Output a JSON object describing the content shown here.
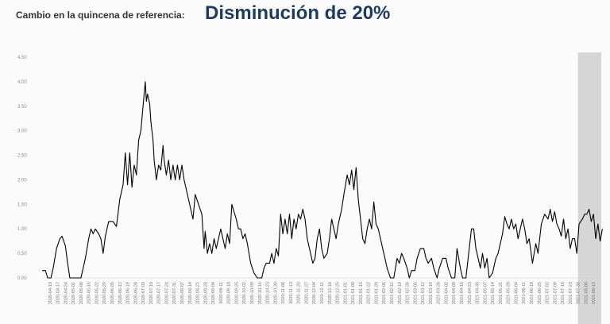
{
  "header": {
    "lead": "Cambio en la quincena de referencia:",
    "headline": "Disminución de 20%"
  },
  "colors": {
    "line": "#000000",
    "headline": "#1e3a5f",
    "highlight": "#d6d6d6",
    "grid": "#e6e6e6"
  },
  "chart_data": {
    "type": "line",
    "title": "",
    "xlabel": "",
    "ylabel": "",
    "ylim": [
      0,
      4.5
    ],
    "yticks": [
      "0.00",
      "0.50",
      "1.00",
      "1.50",
      "2.00",
      "2.50",
      "3.00",
      "3.50",
      "4.00",
      "4.50"
    ],
    "x_start": "2020-04-03",
    "x_end": "2021-08-20",
    "xticks": [
      "2020-04-10",
      "2020-04-17",
      "2020-04-24",
      "2020-05-01",
      "2020-05-08",
      "2020-05-15",
      "2020-05-22",
      "2020-05-29",
      "2020-06-05",
      "2020-06-12",
      "2020-06-19",
      "2020-06-26",
      "2020-07-03",
      "2020-07-10",
      "2020-07-17",
      "2020-07-24",
      "2020-07-31",
      "2020-08-07",
      "2020-08-14",
      "2020-08-21",
      "2020-08-28",
      "2020-09-04",
      "2020-09-11",
      "2020-09-18",
      "2020-09-25",
      "2020-10-02",
      "2020-10-09",
      "2020-10-16",
      "2020-10-23",
      "2020-10-30",
      "2020-11-06",
      "2020-11-13",
      "2020-11-20",
      "2020-11-27",
      "2020-12-04",
      "2020-12-11",
      "2020-12-18",
      "2020-12-25",
      "2021-01-01",
      "2021-01-08",
      "2021-01-15",
      "2021-01-22",
      "2021-01-29",
      "2021-02-05",
      "2021-02-12",
      "2021-02-19",
      "2021-02-26",
      "2021-03-05",
      "2021-03-12",
      "2021-03-19",
      "2021-03-26",
      "2021-04-02",
      "2021-04-09",
      "2021-04-16",
      "2021-04-23",
      "2021-04-30",
      "2021-05-07",
      "2021-05-14",
      "2021-05-21",
      "2021-05-28",
      "2021-06-04",
      "2021-06-11",
      "2021-06-18",
      "2021-06-25",
      "2021-07-02",
      "2021-07-09",
      "2021-07-16",
      "2021-07-23",
      "2021-07-30",
      "2021-08-06",
      "2021-08-13"
    ],
    "highlight": {
      "from": "2021-07-30",
      "to": "2021-08-20"
    },
    "grid": false,
    "legend": "none",
    "series": [
      {
        "points": [
          [
            "2020-04-03",
            0.15
          ],
          [
            "2020-04-06",
            0.15
          ],
          [
            "2020-04-08",
            0.0
          ],
          [
            "2020-04-11",
            0.0
          ],
          [
            "2020-04-13",
            0.2
          ],
          [
            "2020-04-16",
            0.6
          ],
          [
            "2020-04-19",
            0.8
          ],
          [
            "2020-04-21",
            0.85
          ],
          [
            "2020-04-24",
            0.65
          ],
          [
            "2020-04-26",
            0.3
          ],
          [
            "2020-04-28",
            0.0
          ],
          [
            "2020-05-08",
            0.0
          ],
          [
            "2020-05-12",
            0.4
          ],
          [
            "2020-05-15",
            0.8
          ],
          [
            "2020-05-17",
            1.0
          ],
          [
            "2020-05-19",
            0.9
          ],
          [
            "2020-05-21",
            1.0
          ],
          [
            "2020-05-24",
            0.9
          ],
          [
            "2020-05-26",
            0.8
          ],
          [
            "2020-05-28",
            0.5
          ],
          [
            "2020-05-30",
            0.85
          ],
          [
            "2020-06-02",
            1.15
          ],
          [
            "2020-06-06",
            1.15
          ],
          [
            "2020-06-09",
            1.05
          ],
          [
            "2020-06-12",
            1.6
          ],
          [
            "2020-06-15",
            1.9
          ],
          [
            "2020-06-17",
            2.55
          ],
          [
            "2020-06-19",
            1.9
          ],
          [
            "2020-06-21",
            2.55
          ],
          [
            "2020-06-23",
            1.85
          ],
          [
            "2020-06-25",
            2.3
          ],
          [
            "2020-06-27",
            2.1
          ],
          [
            "2020-06-29",
            2.8
          ],
          [
            "2020-07-01",
            3.0
          ],
          [
            "2020-07-03",
            3.5
          ],
          [
            "2020-07-05",
            4.0
          ],
          [
            "2020-07-06",
            3.6
          ],
          [
            "2020-07-07",
            3.75
          ],
          [
            "2020-07-09",
            3.55
          ],
          [
            "2020-07-10",
            3.2
          ],
          [
            "2020-07-12",
            2.8
          ],
          [
            "2020-07-13",
            2.4
          ],
          [
            "2020-07-15",
            2.0
          ],
          [
            "2020-07-17",
            2.3
          ],
          [
            "2020-07-19",
            2.2
          ],
          [
            "2020-07-21",
            2.7
          ],
          [
            "2020-07-22",
            2.4
          ],
          [
            "2020-07-24",
            2.1
          ],
          [
            "2020-07-26",
            2.4
          ],
          [
            "2020-07-28",
            2.0
          ],
          [
            "2020-07-30",
            2.3
          ],
          [
            "2020-08-01",
            2.0
          ],
          [
            "2020-08-03",
            2.3
          ],
          [
            "2020-08-05",
            2.0
          ],
          [
            "2020-08-07",
            2.3
          ],
          [
            "2020-08-09",
            2.0
          ],
          [
            "2020-08-12",
            1.7
          ],
          [
            "2020-08-15",
            1.4
          ],
          [
            "2020-08-17",
            1.2
          ],
          [
            "2020-08-19",
            1.7
          ],
          [
            "2020-08-22",
            1.5
          ],
          [
            "2020-08-25",
            1.3
          ],
          [
            "2020-08-27",
            0.6
          ],
          [
            "2020-08-28",
            0.95
          ],
          [
            "2020-08-30",
            0.5
          ],
          [
            "2020-09-01",
            0.7
          ],
          [
            "2020-09-03",
            0.5
          ],
          [
            "2020-09-05",
            0.8
          ],
          [
            "2020-09-07",
            0.6
          ],
          [
            "2020-09-09",
            0.8
          ],
          [
            "2020-09-11",
            1.0
          ],
          [
            "2020-09-13",
            0.8
          ],
          [
            "2020-09-15",
            0.6
          ],
          [
            "2020-09-17",
            0.9
          ],
          [
            "2020-09-19",
            0.7
          ],
          [
            "2020-09-21",
            1.5
          ],
          [
            "2020-09-23",
            1.35
          ],
          [
            "2020-09-25",
            1.2
          ],
          [
            "2020-09-27",
            1.0
          ],
          [
            "2020-09-29",
            1.0
          ],
          [
            "2020-10-01",
            0.8
          ],
          [
            "2020-10-03",
            0.9
          ],
          [
            "2020-10-05",
            0.7
          ],
          [
            "2020-10-08",
            0.3
          ],
          [
            "2020-10-11",
            0.1
          ],
          [
            "2020-10-14",
            0.0
          ],
          [
            "2020-10-18",
            0.0
          ],
          [
            "2020-10-20",
            0.2
          ],
          [
            "2020-10-22",
            0.3
          ],
          [
            "2020-10-25",
            0.3
          ],
          [
            "2020-10-27",
            0.5
          ],
          [
            "2020-10-29",
            0.3
          ],
          [
            "2020-10-31",
            0.6
          ],
          [
            "2020-11-02",
            0.45
          ],
          [
            "2020-11-04",
            1.3
          ],
          [
            "2020-11-06",
            0.9
          ],
          [
            "2020-11-08",
            1.2
          ],
          [
            "2020-11-10",
            0.9
          ],
          [
            "2020-11-12",
            1.3
          ],
          [
            "2020-11-14",
            0.8
          ],
          [
            "2020-11-16",
            1.2
          ],
          [
            "2020-11-18",
            1.0
          ],
          [
            "2020-11-20",
            1.3
          ],
          [
            "2020-11-22",
            1.2
          ],
          [
            "2020-11-24",
            1.4
          ],
          [
            "2020-11-26",
            1.2
          ],
          [
            "2020-11-28",
            0.8
          ],
          [
            "2020-12-01",
            0.5
          ],
          [
            "2020-12-03",
            0.3
          ],
          [
            "2020-12-05",
            0.4
          ],
          [
            "2020-12-07",
            0.8
          ],
          [
            "2020-12-09",
            1.0
          ],
          [
            "2020-12-11",
            0.6
          ],
          [
            "2020-12-13",
            0.4
          ],
          [
            "2020-12-16",
            0.5
          ],
          [
            "2020-12-18",
            0.8
          ],
          [
            "2020-12-20",
            1.2
          ],
          [
            "2020-12-22",
            1.0
          ],
          [
            "2020-12-24",
            0.8
          ],
          [
            "2020-12-26",
            1.1
          ],
          [
            "2020-12-29",
            1.4
          ],
          [
            "2020-12-31",
            1.7
          ],
          [
            "2021-01-03",
            2.1
          ],
          [
            "2021-01-05",
            1.9
          ],
          [
            "2021-01-07",
            2.2
          ],
          [
            "2021-01-09",
            1.8
          ],
          [
            "2021-01-11",
            2.25
          ],
          [
            "2021-01-13",
            1.6
          ],
          [
            "2021-01-15",
            1.2
          ],
          [
            "2021-01-17",
            0.8
          ],
          [
            "2021-01-19",
            0.7
          ],
          [
            "2021-01-21",
            1.0
          ],
          [
            "2021-01-23",
            1.2
          ],
          [
            "2021-01-25",
            1.0
          ],
          [
            "2021-01-27",
            1.55
          ],
          [
            "2021-01-29",
            1.1
          ],
          [
            "2021-01-31",
            1.0
          ],
          [
            "2021-02-03",
            0.7
          ],
          [
            "2021-02-05",
            0.5
          ],
          [
            "2021-02-08",
            0.2
          ],
          [
            "2021-02-11",
            0.0
          ],
          [
            "2021-02-14",
            0.0
          ],
          [
            "2021-02-17",
            0.4
          ],
          [
            "2021-02-19",
            0.3
          ],
          [
            "2021-02-21",
            0.5
          ],
          [
            "2021-02-23",
            0.4
          ],
          [
            "2021-02-26",
            0.2
          ],
          [
            "2021-02-28",
            0.0
          ],
          [
            "2021-03-02",
            0.15
          ],
          [
            "2021-03-05",
            0.15
          ],
          [
            "2021-03-07",
            0.4
          ],
          [
            "2021-03-10",
            0.6
          ],
          [
            "2021-03-13",
            0.6
          ],
          [
            "2021-03-15",
            0.4
          ],
          [
            "2021-03-17",
            0.3
          ],
          [
            "2021-03-20",
            0.4
          ],
          [
            "2021-03-22",
            0.2
          ],
          [
            "2021-03-25",
            0.0
          ],
          [
            "2021-03-27",
            0.2
          ],
          [
            "2021-03-30",
            0.4
          ],
          [
            "2021-04-02",
            0.4
          ],
          [
            "2021-04-04",
            0.2
          ],
          [
            "2021-04-07",
            0.0
          ],
          [
            "2021-04-10",
            0.0
          ],
          [
            "2021-04-12",
            0.6
          ],
          [
            "2021-04-15",
            0.2
          ],
          [
            "2021-04-17",
            0.0
          ],
          [
            "2021-04-20",
            0.0
          ],
          [
            "2021-04-22",
            0.4
          ],
          [
            "2021-04-25",
            1.0
          ],
          [
            "2021-04-27",
            1.0
          ],
          [
            "2021-04-29",
            0.6
          ],
          [
            "2021-05-01",
            0.4
          ],
          [
            "2021-05-03",
            0.2
          ],
          [
            "2021-05-05",
            0.5
          ],
          [
            "2021-05-07",
            0.2
          ],
          [
            "2021-05-09",
            0.4
          ],
          [
            "2021-05-11",
            0.0
          ],
          [
            "2021-05-14",
            0.1
          ],
          [
            "2021-05-17",
            0.4
          ],
          [
            "2021-05-19",
            0.5
          ],
          [
            "2021-05-21",
            0.7
          ],
          [
            "2021-05-23",
            0.9
          ],
          [
            "2021-05-25",
            1.25
          ],
          [
            "2021-05-27",
            1.1
          ],
          [
            "2021-05-29",
            1.0
          ],
          [
            "2021-05-31",
            1.2
          ],
          [
            "2021-06-02",
            1.0
          ],
          [
            "2021-06-04",
            1.1
          ],
          [
            "2021-06-06",
            0.8
          ],
          [
            "2021-06-08",
            1.0
          ],
          [
            "2021-06-10",
            1.2
          ],
          [
            "2021-06-12",
            1.0
          ],
          [
            "2021-06-14",
            0.7
          ],
          [
            "2021-06-16",
            0.8
          ],
          [
            "2021-06-19",
            0.3
          ],
          [
            "2021-06-22",
            0.7
          ],
          [
            "2021-06-24",
            0.5
          ],
          [
            "2021-06-27",
            1.1
          ],
          [
            "2021-06-30",
            1.3
          ],
          [
            "2021-07-03",
            1.2
          ],
          [
            "2021-07-05",
            1.4
          ],
          [
            "2021-07-07",
            1.15
          ],
          [
            "2021-07-09",
            1.35
          ],
          [
            "2021-07-11",
            1.1
          ],
          [
            "2021-07-13",
            1.0
          ],
          [
            "2021-07-15",
            0.85
          ],
          [
            "2021-07-17",
            1.2
          ],
          [
            "2021-07-19",
            0.8
          ],
          [
            "2021-07-21",
            1.0
          ],
          [
            "2021-07-23",
            0.6
          ],
          [
            "2021-07-25",
            0.8
          ],
          [
            "2021-07-27",
            0.8
          ],
          [
            "2021-07-29",
            0.5
          ],
          [
            "2021-07-31",
            1.1
          ],
          [
            "2021-08-03",
            1.2
          ],
          [
            "2021-08-05",
            1.3
          ],
          [
            "2021-08-07",
            1.3
          ],
          [
            "2021-08-09",
            1.4
          ],
          [
            "2021-08-11",
            1.15
          ],
          [
            "2021-08-13",
            1.3
          ],
          [
            "2021-08-15",
            0.8
          ],
          [
            "2021-08-17",
            1.1
          ],
          [
            "2021-08-19",
            0.75
          ],
          [
            "2021-08-21",
            1.0
          ]
        ]
      }
    ]
  }
}
